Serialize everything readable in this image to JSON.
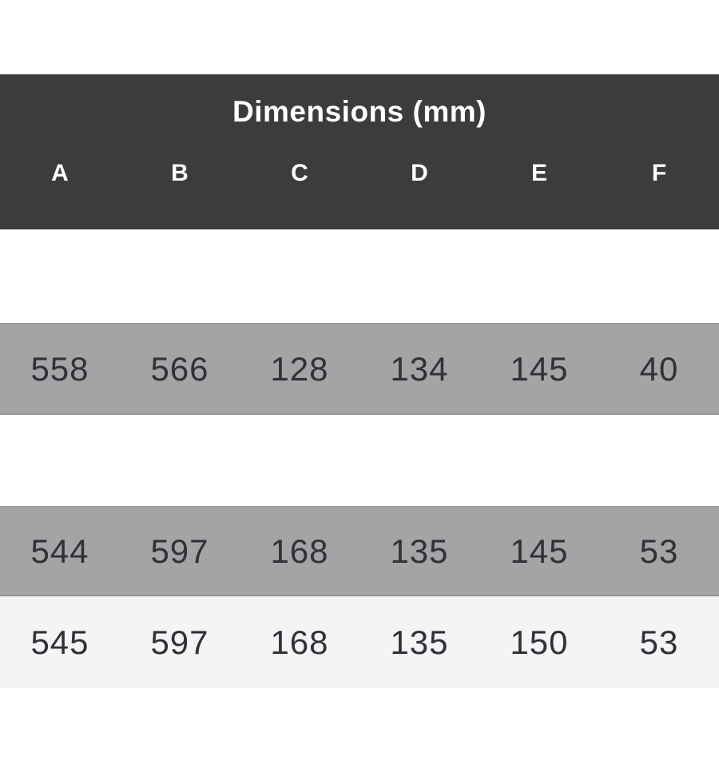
{
  "table": {
    "title": "Dimensions (mm)",
    "columns": [
      "A",
      "B",
      "C",
      "D",
      "E",
      "F"
    ],
    "rows": [
      {
        "shade": "none",
        "values": [
          "",
          "",
          "",
          "",
          "",
          ""
        ]
      },
      {
        "shade": "gray",
        "values": [
          "558",
          "566",
          "128",
          "134",
          "145",
          "40"
        ]
      },
      {
        "shade": "none",
        "values": [
          "",
          "",
          "",
          "",
          "",
          ""
        ]
      },
      {
        "shade": "gray",
        "values": [
          "544",
          "597",
          "168",
          "135",
          "145",
          "53"
        ]
      },
      {
        "shade": "light",
        "values": [
          "545",
          "597",
          "168",
          "135",
          "150",
          "53"
        ]
      }
    ],
    "colors": {
      "header_bg": "#3c3c3e",
      "header_text": "#ffffff",
      "row_gray": "#a5a3a6",
      "row_light": "#f4f3f5",
      "value_text": "#323136"
    }
  }
}
